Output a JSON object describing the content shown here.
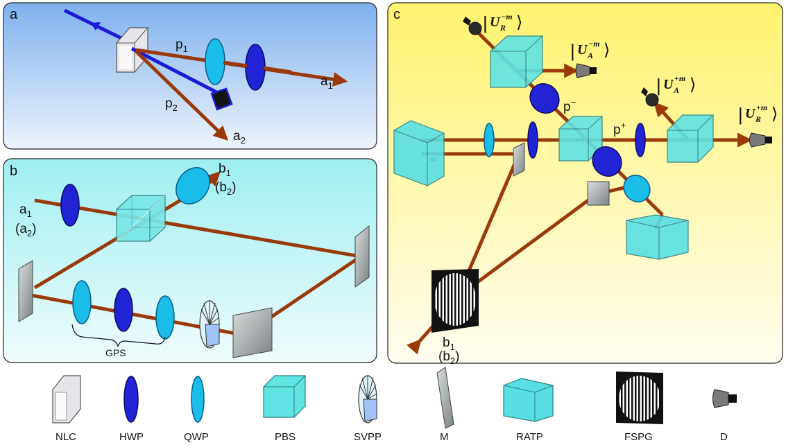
{
  "panels": {
    "a": {
      "letter": "a",
      "labels": {
        "p1": "p",
        "p1_sub": "1",
        "p2": "p",
        "p2_sub": "2",
        "a1": "a",
        "a1_sub": "1",
        "a2": "a",
        "a2_sub": "2"
      }
    },
    "b": {
      "letter": "b",
      "labels": {
        "b1": "b",
        "b1_sub": "1",
        "b2": "(b",
        "b2_sub": "2",
        "b2_close": ")",
        "a1": "a",
        "a1_sub": "1",
        "a2": "(a",
        "a2_sub": "2",
        "a2_close": ")",
        "gps": "GPS"
      }
    },
    "c": {
      "letter": "c",
      "labels": {
        "pminus": "p",
        "pminus_sup": "−",
        "pplus": "p",
        "pplus_sup": "+",
        "b1": "b",
        "b1_sub": "1",
        "b2": "(b",
        "b2_sub": "2",
        "b2_close": ")"
      },
      "kets": [
        {
          "id": "UR-m",
          "base": "U",
          "sub": "R",
          "sup": "−m"
        },
        {
          "id": "UA-m",
          "base": "U",
          "sub": "A",
          "sup": "−m"
        },
        {
          "id": "UA+m",
          "base": "U",
          "sub": "A",
          "sup": "+m"
        },
        {
          "id": "UR+m",
          "base": "U",
          "sub": "R",
          "sup": "+m"
        }
      ]
    }
  },
  "legend": [
    {
      "key": "NLC"
    },
    {
      "key": "HWP"
    },
    {
      "key": "QWP"
    },
    {
      "key": "PBS"
    },
    {
      "key": "SVPP"
    },
    {
      "key": "M"
    },
    {
      "key": "RATP"
    },
    {
      "key": "FSPG"
    },
    {
      "key": "D"
    }
  ],
  "colors": {
    "beam": "#9a3a0a",
    "pump": "#1a1ad8",
    "hwp": "#2323d6",
    "qwp": "#19bde8",
    "pbs": "#5fe3e3",
    "panel_a_top": "#7fb2ee",
    "panel_b": "#a8f0f0",
    "panel_c_top": "#fff57a"
  }
}
